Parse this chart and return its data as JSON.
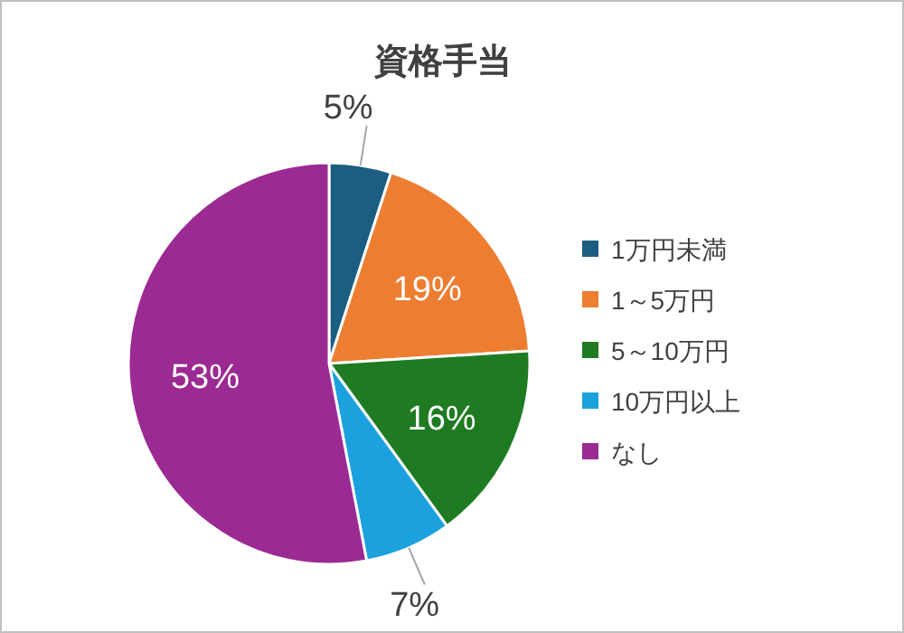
{
  "chart_data": {
    "type": "pie",
    "title": "資格手当",
    "categories": [
      "1万円未満",
      "1～5万円",
      "5～10万円",
      "10万円以上",
      "なし"
    ],
    "values": [
      5,
      19,
      16,
      7,
      53
    ],
    "colors": [
      "#1b5e81",
      "#ed7d31",
      "#1e7b22",
      "#1ba1dd",
      "#9b2a93"
    ],
    "value_labels": [
      "5%",
      "19%",
      "16%",
      "7%",
      "53%"
    ],
    "legend": "right"
  }
}
